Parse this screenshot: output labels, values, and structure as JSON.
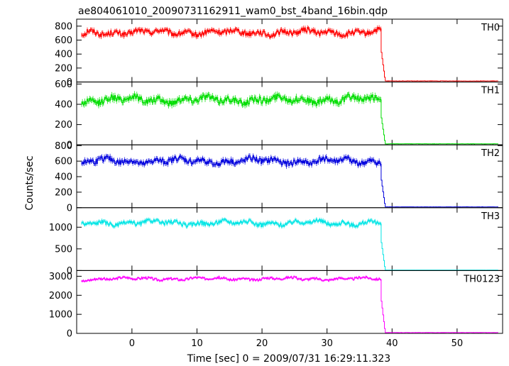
{
  "chart_data": {
    "type": "line",
    "title": "ae804061010_20090731162911_wam0_bst_4band_16bin.qdp",
    "xlabel": "Time [sec] 0 = 2009/07/31 16:29:11.323",
    "ylabel": "Counts/sec",
    "xlim": [
      -8.5,
      57
    ],
    "x_ticks": [
      0,
      10,
      20,
      30,
      40,
      50
    ],
    "x_tick_labels": [
      "0",
      "10",
      "20",
      "30",
      "40",
      "50"
    ],
    "burst_end": 38.3,
    "grid": false,
    "panels": [
      {
        "name": "TH0",
        "color": "#ff0000",
        "ylim": [
          0,
          900
        ],
        "y_ticks": [
          0,
          200,
          400,
          600,
          800
        ],
        "y_tick_labels": [
          "0",
          "200",
          "400",
          "600",
          "800"
        ],
        "level": 710,
        "noise": 35,
        "wave": 40,
        "after": 15
      },
      {
        "name": "TH1",
        "color": "#00dd00",
        "ylim": [
          0,
          620
        ],
        "y_ticks": [
          0,
          200,
          400,
          600
        ],
        "y_tick_labels": [
          "0",
          "200",
          "400",
          "600"
        ],
        "level": 445,
        "noise": 30,
        "wave": 35,
        "after": 10
      },
      {
        "name": "TH2",
        "color": "#0000dd",
        "ylim": [
          0,
          810
        ],
        "y_ticks": [
          0,
          200,
          400,
          600,
          800
        ],
        "y_tick_labels": [
          "0",
          "200",
          "400",
          "600",
          "800"
        ],
        "level": 600,
        "noise": 35,
        "wave": 40,
        "after": 10
      },
      {
        "name": "TH3",
        "color": "#00e5e5",
        "ylim": [
          0,
          1450
        ],
        "y_ticks": [
          0,
          500,
          1000
        ],
        "y_tick_labels": [
          "0",
          "500",
          "1000"
        ],
        "level": 1100,
        "noise": 45,
        "wave": 60,
        "after": 10
      },
      {
        "name": "TH0123",
        "color": "#ff00ff",
        "ylim": [
          0,
          3300
        ],
        "y_ticks": [
          0,
          1000,
          2000,
          3000
        ],
        "y_tick_labels": [
          "0",
          "1000",
          "2000",
          "3000"
        ],
        "level": 2870,
        "noise": 60,
        "wave": 80,
        "after": 40
      }
    ]
  }
}
